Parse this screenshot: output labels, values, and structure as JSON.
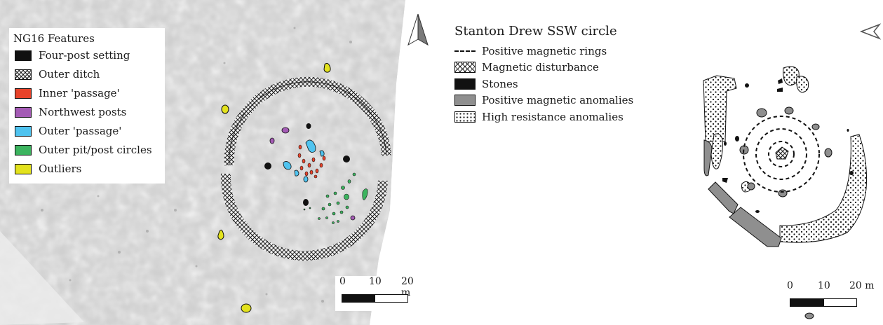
{
  "left_map": {
    "legend": {
      "title": "NG16 Features",
      "items": [
        {
          "label": "Four-post setting",
          "color": "#111111",
          "pattern": "solid"
        },
        {
          "label": "Outer ditch",
          "color": "#444444",
          "pattern": "crosshatch"
        },
        {
          "label": "Inner 'passage'",
          "color": "#e8432a",
          "pattern": "solid"
        },
        {
          "label": "Northwest posts",
          "color": "#a45bb5",
          "pattern": "solid"
        },
        {
          "label": "Outer 'passage'",
          "color": "#4fc3ef",
          "pattern": "solid"
        },
        {
          "label": "Outer pit/post circles",
          "color": "#3cb45f",
          "pattern": "solid"
        },
        {
          "label": "Outliers",
          "color": "#e3e21d",
          "pattern": "solid"
        }
      ]
    },
    "scale": {
      "ticks": [
        "0",
        "10",
        "20 m"
      ]
    },
    "north_arrow": "north-arrow-icon"
  },
  "right_map": {
    "legend": {
      "title": "Stanton Drew SSW circle",
      "items": [
        {
          "label": "Positive magnetic rings",
          "pattern": "dashed-line"
        },
        {
          "label": "Magnetic disturbance",
          "pattern": "crosshatch"
        },
        {
          "label": "Stones",
          "color": "#111111",
          "pattern": "solid"
        },
        {
          "label": "Positive magnetic anomalies",
          "color": "#8f8f8f",
          "pattern": "solid"
        },
        {
          "label": "High resistance anomalies",
          "pattern": "dots"
        }
      ]
    },
    "scale": {
      "ticks": [
        "0",
        "10",
        "20 m"
      ]
    },
    "north_arrow": "north-arrow-icon"
  },
  "colors": {
    "ditch": "#555555",
    "background_survey": "#c9c9c9",
    "stone": "#111111",
    "positive_anomaly": "#8f8f8f"
  }
}
